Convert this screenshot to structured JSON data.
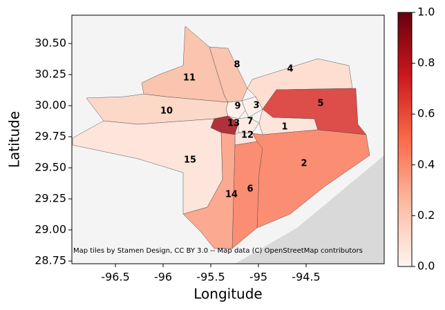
{
  "chart_data": {
    "type": "choropleth",
    "xlabel": "Longitude",
    "ylabel": "Latitude",
    "xlim": [
      -96.957,
      -93.681
    ],
    "ylim": [
      28.728,
      30.728
    ],
    "xticks": [
      -96.5,
      -96.0,
      -95.5,
      -95.0,
      -94.5
    ],
    "yticks": [
      {
        "value": 30.5,
        "label": "30.50"
      },
      {
        "value": 30.25,
        "label": "30.25"
      },
      {
        "value": 30.0,
        "label": "30.00"
      },
      {
        "value": 29.75,
        "label": "29.75"
      },
      {
        "value": 29.5,
        "label": "29.50"
      },
      {
        "value": 29.25,
        "label": "29.25"
      },
      {
        "value": 29.0,
        "label": "29.00"
      },
      {
        "value": 28.75,
        "label": "28.75"
      }
    ],
    "colorbar": {
      "lim": [
        0,
        1
      ],
      "ticks": [
        {
          "value": 0,
          "label": "0.0"
        },
        {
          "value": 0.2,
          "label": "0.2"
        },
        {
          "value": 0.4,
          "label": "0.4"
        },
        {
          "value": 0.6,
          "label": "0.6"
        },
        {
          "value": 0.8,
          "label": "0.8"
        },
        {
          "value": 1,
          "label": "1.0"
        }
      ],
      "colormap": [
        "#fff5f0",
        "#fcbba1",
        "#fb6a4a",
        "#cb181d",
        "#67000d"
      ]
    },
    "regions": [
      {
        "label": "1",
        "value": 0.08
      },
      {
        "label": "2",
        "value": 0.45
      },
      {
        "label": "3",
        "value": 0.03
      },
      {
        "label": "4",
        "value": 0.12
      },
      {
        "label": "5",
        "value": 0.68
      },
      {
        "label": "6",
        "value": 0.45
      },
      {
        "label": "7",
        "value": 0.05
      },
      {
        "label": "8",
        "value": 0.25
      },
      {
        "label": "9",
        "value": 0.02
      },
      {
        "label": "10",
        "value": 0.15
      },
      {
        "label": "11",
        "value": 0.25
      },
      {
        "label": "12",
        "value": 0.08
      },
      {
        "label": "13",
        "value": 0.85
      },
      {
        "label": "14",
        "value": 0.35
      },
      {
        "label": "15",
        "value": 0.08
      }
    ],
    "attribution": "Map tiles by Stamen Design, CC BY 3.0 -- Map data (C) OpenStreetMap contributors"
  }
}
